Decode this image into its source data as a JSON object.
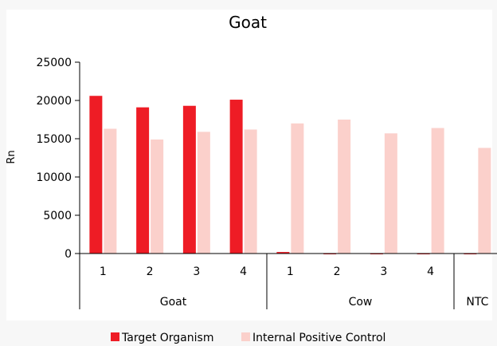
{
  "chart_data": {
    "type": "bar",
    "title": "Goat",
    "xlabel": "",
    "ylabel": "Rn",
    "ylim": [
      0,
      25000
    ],
    "yticks": [
      0,
      5000,
      10000,
      15000,
      20000,
      25000
    ],
    "grid": false,
    "legend_position": "bottom",
    "categories": [
      "1",
      "2",
      "3",
      "4",
      "1",
      "2",
      "3",
      "4",
      ""
    ],
    "groups": [
      {
        "label": "Goat",
        "count": 4
      },
      {
        "label": "Cow",
        "count": 4
      },
      {
        "label": "NTC",
        "count": 1
      }
    ],
    "series": [
      {
        "name": "Target Organism",
        "color": "#ee1c25",
        "values": [
          20600,
          19100,
          19300,
          20100,
          200,
          -100,
          -100,
          -100,
          -100
        ]
      },
      {
        "name": "Internal Positive Control",
        "color": "#fbd0cb",
        "values": [
          16300,
          14900,
          15900,
          16200,
          17000,
          17500,
          15700,
          16400,
          13800
        ]
      }
    ]
  }
}
